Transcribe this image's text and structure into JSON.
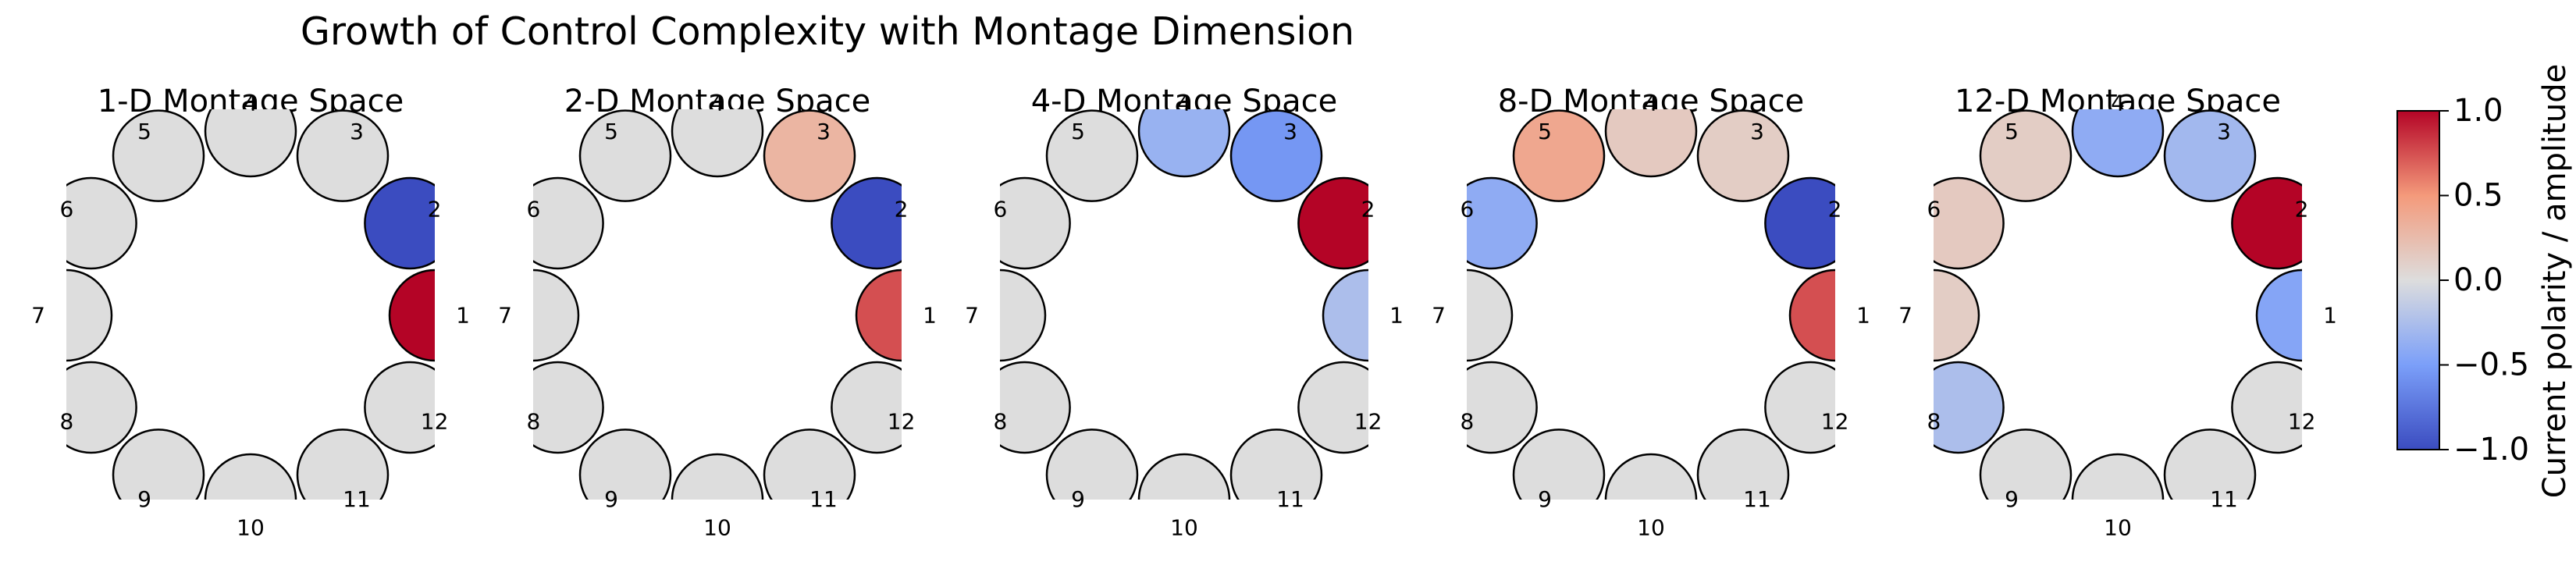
{
  "chart_data": {
    "type": "electrode-ring",
    "title": "Growth of Control Complexity with Montage Dimension",
    "electrode_labels": [
      "1",
      "2",
      "3",
      "4",
      "5",
      "6",
      "7",
      "8",
      "9",
      "10",
      "11",
      "12"
    ],
    "panels": [
      {
        "title": "1-D Montage Space",
        "values": [
          1.0,
          -1.0,
          0,
          0,
          0,
          0,
          0,
          0,
          0,
          0,
          0,
          0
        ]
      },
      {
        "title": "2-D Montage Space",
        "values": [
          0.75,
          -1.0,
          0.3,
          0,
          0,
          0,
          0,
          0,
          0,
          0,
          0,
          0
        ]
      },
      {
        "title": "4-D Montage Space",
        "values": [
          -0.25,
          1.0,
          -0.55,
          -0.35,
          0,
          0,
          0,
          0,
          0,
          0,
          0,
          0
        ]
      },
      {
        "title": "8-D Montage Space",
        "values": [
          0.75,
          -1.0,
          0.12,
          0.15,
          0.4,
          -0.4,
          0,
          0,
          0,
          0,
          0,
          0
        ]
      },
      {
        "title": "12-D Montage Space",
        "values": [
          -0.45,
          1.0,
          -0.3,
          -0.4,
          0.12,
          0.15,
          0.12,
          -0.25,
          0,
          0,
          0,
          0
        ]
      }
    ],
    "colorbar": {
      "label": "Current polarity / amplitude",
      "range": [
        -1.0,
        1.0
      ],
      "ticks": [
        "1.0",
        "0.5",
        "0.0",
        "−0.5",
        "−1.0"
      ],
      "colormap": "coolwarm"
    }
  }
}
